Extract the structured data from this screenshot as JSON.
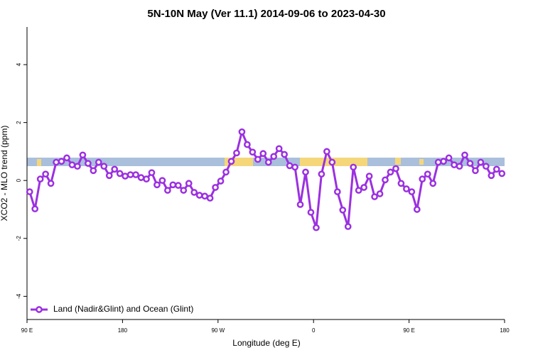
{
  "chart_data": {
    "type": "line",
    "title": "5N-10N May (Ver 11.1)   2014-09-06 to 2023-04-30",
    "x_label": "Longitude (deg E)",
    "y_label": "XCO2 - MLO trend (ppm)",
    "xlim": [
      90,
      540
    ],
    "ylim": [
      -4.8,
      5.3
    ],
    "xticks": [
      {
        "value": 90,
        "label": "90 E"
      },
      180,
      {
        "value": 270,
        "label": "90 W"
      },
      {
        "value": 360,
        "label": "0"
      },
      {
        "value": 450,
        "label": "90 E"
      },
      {
        "value": 540,
        "label": "180"
      }
    ],
    "yticks": [
      -4,
      -2,
      0,
      2,
      4
    ],
    "legend": "bottom-left",
    "x": [
      92.5,
      97.5,
      102.5,
      107.5,
      112.5,
      117.5,
      122.5,
      127.5,
      132.5,
      137.5,
      142.5,
      147.5,
      152.5,
      157.5,
      162.5,
      167.5,
      172.5,
      177.5,
      182.5,
      187.5,
      192.5,
      197.5,
      202.5,
      207.5,
      212.5,
      217.5,
      222.5,
      227.5,
      232.5,
      237.5,
      242.5,
      247.5,
      252.5,
      257.5,
      262.5,
      267.5,
      272.5,
      277.5,
      282.5,
      287.5,
      292.5,
      297.5,
      302.5,
      307.5,
      312.5,
      317.5,
      322.5,
      327.5,
      332.5,
      337.5,
      342.5,
      347.5,
      352.5,
      357.5,
      362.5,
      367.5,
      372.5,
      377.5,
      382.5,
      387.5,
      392.5,
      397.5,
      402.5,
      407.5,
      412.5,
      417.5,
      422.5,
      427.5,
      432.5,
      437.5,
      442.5,
      447.5,
      452.5,
      457.5,
      462.5,
      467.5,
      472.5,
      477.5,
      482.5,
      487.5,
      492.5,
      497.5,
      502.5,
      507.5,
      512.5,
      517.5,
      522.5,
      527.5,
      532.5,
      537.5
    ],
    "series": [
      {
        "name": "Land (Nadir&Glint) and Ocean (Glint)",
        "color": "#9b30e0",
        "values": [
          -0.39,
          -0.98,
          0.05,
          0.22,
          -0.1,
          0.63,
          0.66,
          0.78,
          0.54,
          0.49,
          0.88,
          0.59,
          0.34,
          0.63,
          0.49,
          0.17,
          0.39,
          0.24,
          0.15,
          0.2,
          0.2,
          0.1,
          0.05,
          0.27,
          -0.15,
          0,
          -0.34,
          -0.15,
          -0.17,
          -0.34,
          -0.1,
          -0.41,
          -0.51,
          -0.54,
          -0.61,
          -0.24,
          -0.02,
          0.29,
          0.66,
          0.95,
          1.68,
          1.24,
          0.98,
          0.73,
          0.93,
          0.63,
          0.83,
          1.1,
          0.9,
          0.51,
          0.46,
          -0.83,
          0.29,
          -1.1,
          -1.63,
          0.22,
          1.0,
          0.63,
          -0.39,
          -1.02,
          -1.59,
          0.46,
          -0.34,
          -0.24,
          0.15,
          -0.56,
          -0.46,
          0.02,
          0.29,
          0.41,
          -0.1,
          -0.29,
          -0.39,
          -1.0,
          0.05,
          0.22,
          -0.1,
          0.63,
          0.66,
          0.78,
          0.54,
          0.49,
          0.88,
          0.59,
          0.34,
          0.63,
          0.49,
          0.17,
          0.39,
          0.24
        ]
      }
    ]
  }
}
